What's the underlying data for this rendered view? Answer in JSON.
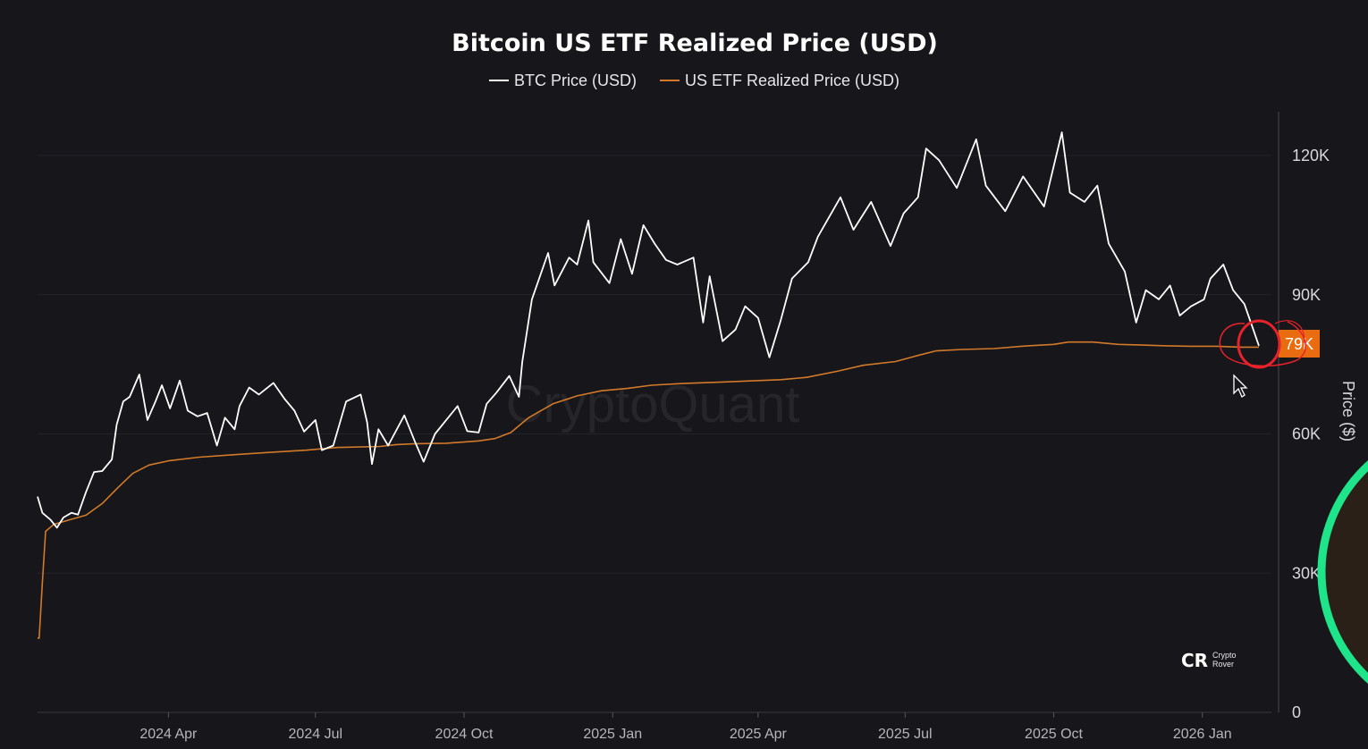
{
  "chart_data": {
    "type": "line",
    "title": "Bitcoin US ETF Realized Price (USD)",
    "ylabel": "Price ($)",
    "xlabel": "",
    "ylim": [
      0,
      130000
    ],
    "y_ticks": [
      0,
      30000,
      60000,
      90000,
      120000
    ],
    "y_tick_labels": [
      "0",
      "30K",
      "60K",
      "90K",
      "120K"
    ],
    "x_range": [
      "2024-01-11",
      "2026-02-05"
    ],
    "x_ticks": [
      "2024-04-01",
      "2024-07-01",
      "2024-10-01",
      "2025-01-01",
      "2025-04-01",
      "2025-07-01",
      "2025-10-01",
      "2026-01-01"
    ],
    "x_tick_labels": [
      "2024 Apr",
      "2024 Jul",
      "2024 Oct",
      "2025 Jan",
      "2025 Apr",
      "2025 Jul",
      "2025 Oct",
      "2026 Jan"
    ],
    "legend_position": "top-center",
    "watermark": "CryptoQuant",
    "logo_text": [
      "Crypto",
      "Rover"
    ],
    "last_value_label": "79K",
    "series": [
      {
        "name": "BTC Price (USD)",
        "color": "#ffffff",
        "points": [
          [
            "2024-01-11",
            46500
          ],
          [
            "2024-01-14",
            43000
          ],
          [
            "2024-01-19",
            41500
          ],
          [
            "2024-01-23",
            39800
          ],
          [
            "2024-01-27",
            42000
          ],
          [
            "2024-02-01",
            43000
          ],
          [
            "2024-02-05",
            42600
          ],
          [
            "2024-02-10",
            47500
          ],
          [
            "2024-02-15",
            51800
          ],
          [
            "2024-02-20",
            52000
          ],
          [
            "2024-02-26",
            54500
          ],
          [
            "2024-02-29",
            62000
          ],
          [
            "2024-03-04",
            67000
          ],
          [
            "2024-03-08",
            68000
          ],
          [
            "2024-03-14",
            72800
          ],
          [
            "2024-03-19",
            63000
          ],
          [
            "2024-03-24",
            67000
          ],
          [
            "2024-03-28",
            70500
          ],
          [
            "2024-04-02",
            65500
          ],
          [
            "2024-04-08",
            71500
          ],
          [
            "2024-04-13",
            65000
          ],
          [
            "2024-04-19",
            63800
          ],
          [
            "2024-04-25",
            64500
          ],
          [
            "2024-05-01",
            57500
          ],
          [
            "2024-05-06",
            63500
          ],
          [
            "2024-05-12",
            61000
          ],
          [
            "2024-05-15",
            66000
          ],
          [
            "2024-05-21",
            70000
          ],
          [
            "2024-05-27",
            68500
          ],
          [
            "2024-06-05",
            71000
          ],
          [
            "2024-06-12",
            67500
          ],
          [
            "2024-06-18",
            65000
          ],
          [
            "2024-06-24",
            60500
          ],
          [
            "2024-07-01",
            63000
          ],
          [
            "2024-07-05",
            56500
          ],
          [
            "2024-07-12",
            57500
          ],
          [
            "2024-07-20",
            67000
          ],
          [
            "2024-07-29",
            68500
          ],
          [
            "2024-08-02",
            62500
          ],
          [
            "2024-08-05",
            53500
          ],
          [
            "2024-08-09",
            61000
          ],
          [
            "2024-08-15",
            57500
          ],
          [
            "2024-08-25",
            64000
          ],
          [
            "2024-09-01",
            58000
          ],
          [
            "2024-09-06",
            54000
          ],
          [
            "2024-09-13",
            60000
          ],
          [
            "2024-09-20",
            63000
          ],
          [
            "2024-09-27",
            66000
          ],
          [
            "2024-10-03",
            60600
          ],
          [
            "2024-10-10",
            60300
          ],
          [
            "2024-10-15",
            66500
          ],
          [
            "2024-10-21",
            68900
          ],
          [
            "2024-10-29",
            72500
          ],
          [
            "2024-11-04",
            68000
          ],
          [
            "2024-11-06",
            75500
          ],
          [
            "2024-11-12",
            89000
          ],
          [
            "2024-11-22",
            99000
          ],
          [
            "2024-11-26",
            92000
          ],
          [
            "2024-12-05",
            98000
          ],
          [
            "2024-12-10",
            96500
          ],
          [
            "2024-12-17",
            106000
          ],
          [
            "2024-12-20",
            97000
          ],
          [
            "2024-12-30",
            92500
          ],
          [
            "2025-01-06",
            102000
          ],
          [
            "2025-01-13",
            94500
          ],
          [
            "2025-01-20",
            105000
          ],
          [
            "2025-01-27",
            101000
          ],
          [
            "2025-02-03",
            97500
          ],
          [
            "2025-02-10",
            96500
          ],
          [
            "2025-02-20",
            98000
          ],
          [
            "2025-02-26",
            84000
          ],
          [
            "2025-03-02",
            94000
          ],
          [
            "2025-03-10",
            80000
          ],
          [
            "2025-03-18",
            82500
          ],
          [
            "2025-03-24",
            87500
          ],
          [
            "2025-04-01",
            85000
          ],
          [
            "2025-04-08",
            76500
          ],
          [
            "2025-04-15",
            84500
          ],
          [
            "2025-04-22",
            93500
          ],
          [
            "2025-05-02",
            97000
          ],
          [
            "2025-05-08",
            102500
          ],
          [
            "2025-05-22",
            111000
          ],
          [
            "2025-05-30",
            104000
          ],
          [
            "2025-06-10",
            110000
          ],
          [
            "2025-06-22",
            100500
          ],
          [
            "2025-06-30",
            107500
          ],
          [
            "2025-07-09",
            111000
          ],
          [
            "2025-07-14",
            121500
          ],
          [
            "2025-07-22",
            119000
          ],
          [
            "2025-08-02",
            113000
          ],
          [
            "2025-08-14",
            123500
          ],
          [
            "2025-08-20",
            113500
          ],
          [
            "2025-09-01",
            108000
          ],
          [
            "2025-09-12",
            115500
          ],
          [
            "2025-09-25",
            109000
          ],
          [
            "2025-10-06",
            125000
          ],
          [
            "2025-10-11",
            112000
          ],
          [
            "2025-10-20",
            110000
          ],
          [
            "2025-10-28",
            113500
          ],
          [
            "2025-11-04",
            101000
          ],
          [
            "2025-11-14",
            95000
          ],
          [
            "2025-11-21",
            84000
          ],
          [
            "2025-11-27",
            91000
          ],
          [
            "2025-12-05",
            89000
          ],
          [
            "2025-12-12",
            92000
          ],
          [
            "2025-12-18",
            85500
          ],
          [
            "2025-12-25",
            87500
          ],
          [
            "2026-01-02",
            89000
          ],
          [
            "2026-01-06",
            93500
          ],
          [
            "2026-01-14",
            96500
          ],
          [
            "2026-01-20",
            91000
          ],
          [
            "2026-01-27",
            88000
          ],
          [
            "2026-02-01",
            83000
          ],
          [
            "2026-02-05",
            79000
          ]
        ]
      },
      {
        "name": "US ETF Realized Price (USD)",
        "color": "#d27a2a",
        "points": [
          [
            "2024-01-11",
            16000
          ],
          [
            "2024-01-12",
            16000
          ],
          [
            "2024-01-14",
            28000
          ],
          [
            "2024-01-16",
            39000
          ],
          [
            "2024-01-21",
            40500
          ],
          [
            "2024-01-31",
            41500
          ],
          [
            "2024-02-10",
            42500
          ],
          [
            "2024-02-20",
            45000
          ],
          [
            "2024-03-01",
            48500
          ],
          [
            "2024-03-10",
            51500
          ],
          [
            "2024-03-20",
            53300
          ],
          [
            "2024-04-01",
            54200
          ],
          [
            "2024-04-20",
            55000
          ],
          [
            "2024-05-10",
            55500
          ],
          [
            "2024-06-01",
            56000
          ],
          [
            "2024-06-25",
            56500
          ],
          [
            "2024-07-15",
            57100
          ],
          [
            "2024-08-10",
            57300
          ],
          [
            "2024-08-20",
            57700
          ],
          [
            "2024-09-01",
            57900
          ],
          [
            "2024-09-20",
            58000
          ],
          [
            "2024-10-10",
            58500
          ],
          [
            "2024-10-20",
            59000
          ],
          [
            "2024-10-30",
            60300
          ],
          [
            "2024-11-10",
            63500
          ],
          [
            "2024-11-25",
            66500
          ],
          [
            "2024-12-10",
            68200
          ],
          [
            "2024-12-25",
            69300
          ],
          [
            "2025-01-10",
            69800
          ],
          [
            "2025-01-25",
            70500
          ],
          [
            "2025-02-15",
            70900
          ],
          [
            "2025-03-10",
            71200
          ],
          [
            "2025-04-01",
            71500
          ],
          [
            "2025-04-15",
            71700
          ],
          [
            "2025-05-01",
            72200
          ],
          [
            "2025-05-20",
            73500
          ],
          [
            "2025-06-05",
            74800
          ],
          [
            "2025-06-25",
            75600
          ],
          [
            "2025-07-10",
            77000
          ],
          [
            "2025-07-20",
            77900
          ],
          [
            "2025-08-05",
            78200
          ],
          [
            "2025-08-25",
            78400
          ],
          [
            "2025-09-15",
            79000
          ],
          [
            "2025-10-01",
            79300
          ],
          [
            "2025-10-10",
            79800
          ],
          [
            "2025-10-25",
            79800
          ],
          [
            "2025-11-10",
            79300
          ],
          [
            "2025-11-20",
            79200
          ],
          [
            "2025-12-10",
            79000
          ],
          [
            "2025-12-25",
            78900
          ],
          [
            "2026-01-10",
            78900
          ],
          [
            "2026-01-25",
            78700
          ],
          [
            "2026-02-05",
            78700
          ]
        ]
      }
    ]
  }
}
